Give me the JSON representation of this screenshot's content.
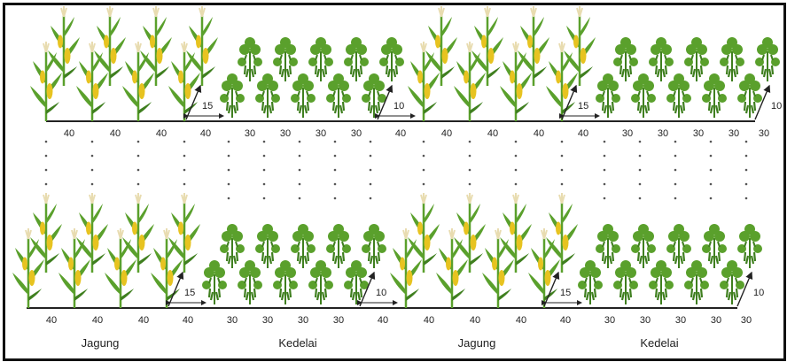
{
  "colors": {
    "leaf": "#5aa02c",
    "leaf_dark": "#3f7f1f",
    "corn_cob": "#e7c320",
    "tassel": "#e8dcb0",
    "line": "#222222",
    "dot": "#555555"
  },
  "icons": {
    "corn": "corn-plant-icon",
    "soybean": "soybean-plant-icon",
    "arrow": "double-arrow-icon"
  },
  "top_row": {
    "segments": [
      "40",
      "40",
      "40",
      "40",
      "30",
      "30",
      "30",
      "30",
      "40",
      "40",
      "40",
      "40",
      "40",
      "30",
      "30",
      "30",
      "30",
      "30"
    ],
    "diag": [
      "15",
      "10",
      "15",
      "10"
    ]
  },
  "bottom_row": {
    "segments": [
      "40",
      "40",
      "40",
      "40",
      "30",
      "30",
      "30",
      "30",
      "40",
      "40",
      "40",
      "40",
      "40",
      "30",
      "30",
      "30",
      "30",
      "30"
    ],
    "diag": [
      "15",
      "10",
      "15",
      "10"
    ]
  },
  "sections": [
    "Jagung",
    "Kedelai",
    "Jagung",
    "Kedelai"
  ]
}
